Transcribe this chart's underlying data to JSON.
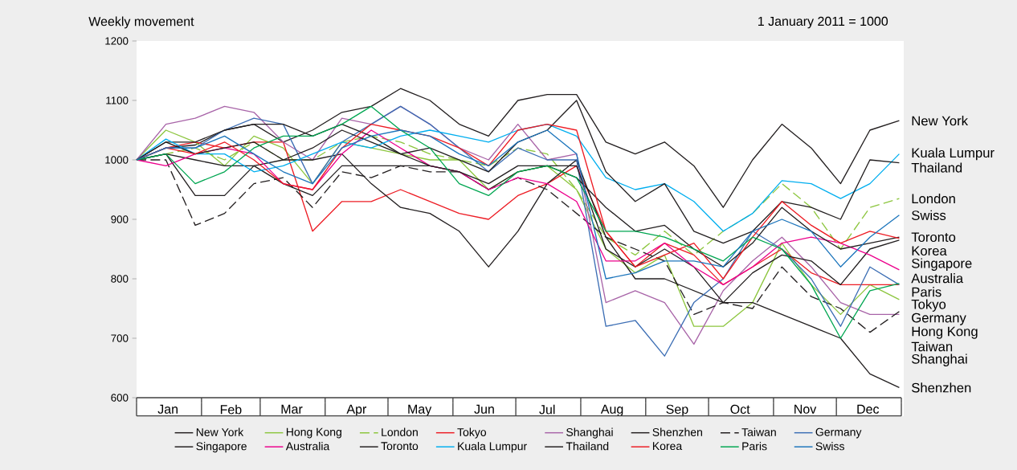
{
  "chart_data": {
    "type": "line",
    "ylabel": "Weekly movement",
    "annotations": [
      "1 January 2011 = 1000"
    ],
    "x": [
      "2011-01-01",
      "2011-01-15",
      "2011-01-29",
      "2011-02-12",
      "2011-02-26",
      "2011-03-12",
      "2011-03-26",
      "2011-04-09",
      "2011-04-23",
      "2011-05-07",
      "2011-05-21",
      "2011-06-04",
      "2011-06-18",
      "2011-07-02",
      "2011-07-16",
      "2011-07-30",
      "2011-08-13",
      "2011-08-27",
      "2011-09-10",
      "2011-09-24",
      "2011-10-08",
      "2011-10-22",
      "2011-11-05",
      "2011-11-19",
      "2011-12-03",
      "2011-12-17",
      "2011-12-31"
    ],
    "series": [
      {
        "name": "New York",
        "color": "#231f20",
        "values": [
          1000,
          1020,
          1025,
          1050,
          1060,
          1030,
          1050,
          1080,
          1090,
          1120,
          1100,
          1060,
          1040,
          1100,
          1110,
          1110,
          1030,
          1010,
          1030,
          990,
          920,
          1000,
          1060,
          1020,
          960,
          1050,
          1066
        ]
      },
      {
        "name": "Hong Kong",
        "color": "#8dc63f",
        "values": [
          1000,
          1050,
          1030,
          990,
          1040,
          1020,
          960,
          1030,
          1020,
          1010,
          1000,
          1000,
          950,
          980,
          990,
          950,
          850,
          810,
          840,
          720,
          720,
          760,
          860,
          790,
          740,
          790,
          765
        ]
      },
      {
        "name": "London",
        "color": "#8dc63f",
        "line_style": "dashed",
        "values": [
          1000,
          1010,
          1020,
          1000,
          1030,
          1000,
          1000,
          1030,
          1040,
          1030,
          1010,
          1000,
          990,
          1020,
          1010,
          950,
          870,
          840,
          880,
          840,
          880,
          910,
          960,
          920,
          850,
          920,
          935
        ]
      },
      {
        "name": "Tokyo",
        "color": "#ed1c24",
        "values": [
          1000,
          1020,
          1030,
          1020,
          1030,
          1030,
          880,
          930,
          930,
          950,
          930,
          910,
          900,
          940,
          960,
          990,
          880,
          820,
          860,
          840,
          790,
          820,
          850,
          810,
          790,
          790,
          790
        ]
      },
      {
        "name": "Shanghai",
        "color": "#a864a8",
        "values": [
          1000,
          1060,
          1070,
          1090,
          1080,
          1030,
          1000,
          1070,
          1060,
          1090,
          1060,
          1020,
          1000,
          1060,
          1000,
          1010,
          760,
          780,
          760,
          690,
          780,
          830,
          870,
          820,
          760,
          740,
          740
        ]
      },
      {
        "name": "Shenzhen",
        "color": "#231f20",
        "values": [
          1000,
          1010,
          940,
          940,
          990,
          1000,
          1000,
          1010,
          960,
          920,
          910,
          880,
          820,
          880,
          960,
          1000,
          870,
          800,
          800,
          780,
          760,
          760,
          740,
          720,
          700,
          640,
          617
        ]
      },
      {
        "name": "Taiwan",
        "color": "#231f20",
        "line_style": "dashed",
        "values": [
          1000,
          1000,
          890,
          910,
          960,
          970,
          920,
          980,
          970,
          990,
          980,
          980,
          950,
          970,
          950,
          910,
          870,
          850,
          830,
          740,
          760,
          750,
          820,
          770,
          750,
          710,
          745
        ]
      },
      {
        "name": "Germany",
        "color": "#3c6eb4",
        "values": [
          1000,
          1020,
          1020,
          1050,
          1070,
          1060,
          960,
          1030,
          1060,
          1090,
          1060,
          1020,
          980,
          1020,
          1000,
          1000,
          720,
          730,
          670,
          760,
          800,
          880,
          850,
          800,
          720,
          820,
          790
        ]
      },
      {
        "name": "Singapore",
        "color": "#231f20",
        "values": [
          1000,
          1010,
          1000,
          990,
          990,
          960,
          940,
          990,
          990,
          990,
          990,
          980,
          950,
          980,
          990,
          990,
          850,
          820,
          850,
          820,
          760,
          810,
          840,
          830,
          790,
          850,
          865
        ]
      },
      {
        "name": "Australia",
        "color": "#ec008c",
        "values": [
          1000,
          990,
          1010,
          1020,
          1010,
          960,
          950,
          1010,
          1050,
          1020,
          990,
          980,
          950,
          970,
          960,
          930,
          830,
          830,
          860,
          820,
          790,
          820,
          860,
          870,
          860,
          840,
          815
        ]
      },
      {
        "name": "Toronto",
        "color": "#231f20",
        "values": [
          1000,
          1030,
          1030,
          1050,
          1060,
          1060,
          1040,
          1060,
          1040,
          1010,
          990,
          980,
          960,
          990,
          990,
          970,
          920,
          880,
          890,
          850,
          820,
          860,
          920,
          880,
          850,
          860,
          870
        ]
      },
      {
        "name": "Kuala Lumpur",
        "color": "#00aeef",
        "values": [
          1000,
          1035,
          1010,
          1010,
          980,
          990,
          1010,
          1030,
          1020,
          1040,
          1050,
          1040,
          1030,
          1050,
          1060,
          1040,
          970,
          950,
          960,
          930,
          880,
          910,
          965,
          960,
          935,
          960,
          1010
        ]
      },
      {
        "name": "Thailand",
        "color": "#231f20",
        "values": [
          1000,
          1030,
          1010,
          1020,
          1030,
          1000,
          1020,
          1050,
          1030,
          1010,
          1020,
          1000,
          980,
          1030,
          1050,
          1100,
          980,
          930,
          960,
          880,
          860,
          880,
          930,
          920,
          900,
          1000,
          995
        ]
      },
      {
        "name": "Korea",
        "color": "#ed1c24",
        "values": [
          1000,
          1020,
          1010,
          1030,
          1000,
          960,
          950,
          1020,
          1060,
          1050,
          1040,
          1020,
          990,
          1050,
          1060,
          1050,
          880,
          820,
          840,
          860,
          800,
          870,
          930,
          890,
          860,
          880,
          868
        ]
      },
      {
        "name": "Paris",
        "color": "#00a651",
        "values": [
          1000,
          1010,
          960,
          980,
          1020,
          1040,
          1040,
          1060,
          1090,
          1050,
          1020,
          960,
          940,
          980,
          990,
          970,
          880,
          880,
          870,
          850,
          830,
          870,
          850,
          790,
          700,
          780,
          792
        ]
      },
      {
        "name": "Swiss",
        "color": "#1c75bc",
        "values": [
          1000,
          1020,
          1020,
          1040,
          1010,
          980,
          960,
          1020,
          1040,
          1050,
          1040,
          1010,
          990,
          1030,
          1050,
          1010,
          800,
          810,
          830,
          830,
          820,
          880,
          900,
          880,
          820,
          870,
          907
        ]
      }
    ],
    "xlim": [
      "2011-01-01",
      "2012-01-01"
    ],
    "xticks": [
      {
        "value": "2011-01-01",
        "label": null
      },
      {
        "value": "2011-02-01",
        "label": null
      },
      {
        "value": "2011-03-01",
        "label": null
      },
      {
        "value": "2011-04-01",
        "label": null
      },
      {
        "value": "2011-05-01",
        "label": null
      },
      {
        "value": "2011-06-01",
        "label": null
      },
      {
        "value": "2011-07-01",
        "label": null
      },
      {
        "value": "2011-08-01",
        "label": null
      },
      {
        "value": "2011-09-01",
        "label": null
      },
      {
        "value": "2011-10-01",
        "label": null
      },
      {
        "value": "2011-11-01",
        "label": null
      },
      {
        "value": "2011-12-01",
        "label": null
      },
      {
        "value": "2012-01-01",
        "label": null
      },
      {
        "value": "2011-01-16",
        "label": "Jan"
      },
      {
        "value": "2011-02-15",
        "label": "Feb"
      },
      {
        "value": "2011-03-16",
        "label": "Mar"
      },
      {
        "value": "2011-04-16",
        "label": "Apr"
      },
      {
        "value": "2011-05-16",
        "label": "May"
      },
      {
        "value": "2011-06-16",
        "label": "Jun"
      },
      {
        "value": "2011-07-16",
        "label": "Jul"
      },
      {
        "value": "2011-08-16",
        "label": "Aug"
      },
      {
        "value": "2011-09-16",
        "label": "Sep"
      },
      {
        "value": "2011-10-16",
        "label": "Oct"
      },
      {
        "value": "2011-11-16",
        "label": "Nov"
      },
      {
        "value": "2011-12-16",
        "label": "Dec"
      }
    ],
    "ylim": [
      600,
      1200
    ],
    "yticks": [
      600,
      700,
      800,
      900,
      1000,
      1100,
      1200
    ],
    "legend": "bottom"
  }
}
